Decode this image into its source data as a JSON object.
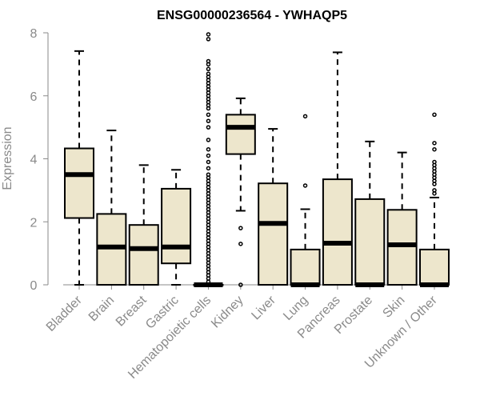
{
  "chart_data": {
    "type": "boxplot",
    "title": "ENSG00000236564 - YWHAQP5",
    "ylabel": "Expression",
    "xlabel": "",
    "ylim": [
      0,
      8
    ],
    "yticks": [
      0,
      2,
      4,
      6,
      8
    ],
    "grid": false,
    "legend": "none",
    "colors": {
      "box_fill": "#ede6cc",
      "box_stroke": "#000000",
      "median": "#000000",
      "axis": "#8a8a8a"
    },
    "categories": [
      "Bladder",
      "Brain",
      "Breast",
      "Gastric",
      "Hematopoietic cells",
      "Kidney",
      "Liver",
      "Lung",
      "Pancreas",
      "Prostate",
      "Skin",
      "Unknown / Other"
    ],
    "boxes": [
      {
        "category": "Bladder",
        "min": 0,
        "q1": 2.12,
        "median": 3.5,
        "q3": 4.33,
        "max": 7.42,
        "outliers": []
      },
      {
        "category": "Brain",
        "min": 0,
        "q1": 0,
        "median": 1.2,
        "q3": 2.25,
        "max": 4.9,
        "outliers": []
      },
      {
        "category": "Breast",
        "min": 0,
        "q1": 0,
        "median": 1.15,
        "q3": 1.9,
        "max": 3.8,
        "outliers": []
      },
      {
        "category": "Gastric",
        "min": 0,
        "q1": 0.68,
        "median": 1.2,
        "q3": 3.05,
        "max": 3.65,
        "outliers": []
      },
      {
        "category": "Hematopoietic cells",
        "min": 0,
        "q1": 0,
        "median": 0,
        "q3": 0,
        "max": 0,
        "outliers": [
          7.95,
          7.8,
          7.1,
          7.0,
          6.85,
          6.7,
          6.6,
          6.5,
          6.4,
          6.3,
          6.2,
          6.1,
          6.0,
          5.9,
          5.8,
          5.7,
          5.6,
          5.4,
          5.2,
          5.0,
          4.6,
          4.3,
          4.1,
          3.9,
          3.7,
          3.5,
          3.4,
          3.3,
          3.2,
          3.1,
          3.0,
          2.9,
          2.8,
          2.7,
          2.6,
          2.5,
          2.4,
          2.3,
          2.2,
          2.1,
          2.0,
          1.9,
          1.8,
          1.7,
          1.6,
          1.5,
          1.4,
          1.3,
          1.2,
          1.1,
          1.0,
          0.9,
          0.8,
          0.7,
          0.6,
          0.5,
          0.4,
          0.3,
          0.2,
          0.1
        ]
      },
      {
        "category": "Kidney",
        "min": 2.35,
        "q1": 4.15,
        "median": 5.0,
        "q3": 5.4,
        "max": 5.92,
        "outliers": [
          1.8,
          1.3,
          0
        ]
      },
      {
        "category": "Liver",
        "min": 0,
        "q1": 0,
        "median": 1.95,
        "q3": 3.22,
        "max": 4.95,
        "outliers": []
      },
      {
        "category": "Lung",
        "min": 0,
        "q1": 0,
        "median": 0,
        "q3": 1.12,
        "max": 2.4,
        "outliers": [
          5.35,
          3.15
        ]
      },
      {
        "category": "Pancreas",
        "min": 0,
        "q1": 0,
        "median": 1.32,
        "q3": 3.35,
        "max": 7.38,
        "outliers": []
      },
      {
        "category": "Prostate",
        "min": 0,
        "q1": 0,
        "median": 0,
        "q3": 2.72,
        "max": 4.55,
        "outliers": []
      },
      {
        "category": "Skin",
        "min": 0,
        "q1": 0,
        "median": 1.27,
        "q3": 2.38,
        "max": 4.2,
        "outliers": []
      },
      {
        "category": "Unknown / Other",
        "min": 0,
        "q1": 0,
        "median": 0,
        "q3": 1.12,
        "max": 2.77,
        "outliers": [
          5.4,
          4.5,
          4.3,
          3.9,
          3.8,
          3.7,
          3.6,
          3.5,
          3.4,
          3.3,
          3.2,
          3.0,
          2.9
        ]
      }
    ]
  }
}
